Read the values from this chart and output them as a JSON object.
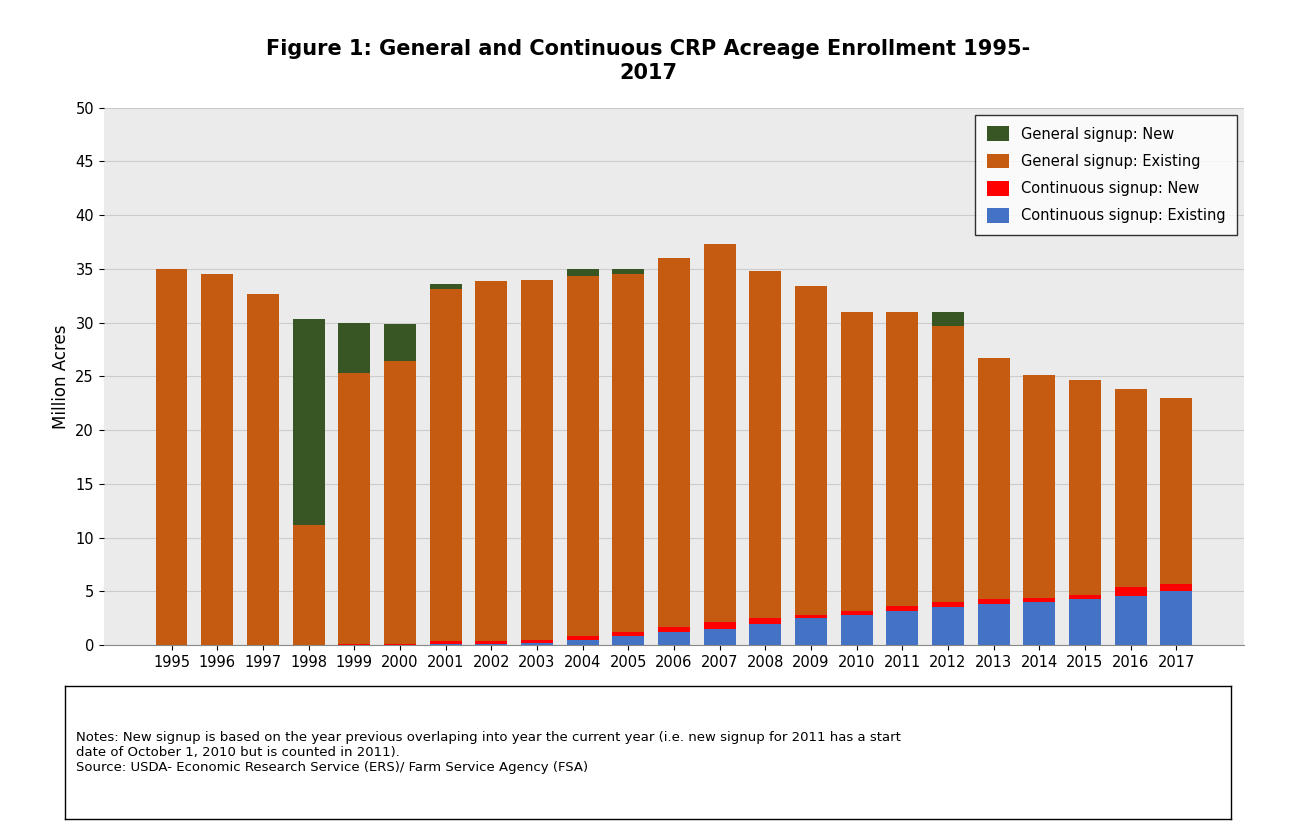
{
  "years": [
    1995,
    1996,
    1997,
    1998,
    1999,
    2000,
    2001,
    2002,
    2003,
    2004,
    2005,
    2006,
    2007,
    2008,
    2009,
    2010,
    2011,
    2012,
    2013,
    2014,
    2015,
    2016,
    2017
  ],
  "continuous_existing": [
    0.0,
    0.0,
    0.0,
    0.0,
    0.0,
    0.0,
    0.1,
    0.1,
    0.2,
    0.5,
    0.8,
    1.2,
    1.5,
    2.0,
    2.5,
    2.8,
    3.2,
    3.5,
    3.8,
    4.0,
    4.3,
    4.6,
    5.0
  ],
  "continuous_new": [
    0.0,
    0.0,
    0.0,
    0.0,
    0.1,
    0.1,
    0.3,
    0.3,
    0.3,
    0.3,
    0.4,
    0.5,
    0.6,
    0.5,
    0.3,
    0.4,
    0.4,
    0.5,
    0.5,
    0.4,
    0.4,
    0.8,
    0.7
  ],
  "general_existing": [
    35.0,
    34.5,
    32.7,
    11.2,
    25.2,
    26.3,
    32.7,
    33.5,
    33.5,
    33.5,
    33.3,
    34.3,
    35.2,
    32.3,
    30.6,
    27.8,
    27.4,
    25.7,
    22.4,
    20.7,
    20.0,
    18.4,
    17.3
  ],
  "general_new": [
    0.0,
    0.0,
    0.0,
    19.1,
    4.7,
    3.5,
    0.5,
    0.0,
    0.0,
    0.7,
    0.5,
    0.0,
    0.0,
    0.0,
    0.0,
    0.0,
    0.0,
    1.3,
    0.0,
    0.0,
    0.0,
    0.0,
    0.0
  ],
  "color_continuous_existing": "#4472C4",
  "color_continuous_new": "#FF0000",
  "color_general_existing": "#C55A11",
  "color_general_new": "#375623",
  "title": "Figure 1: General and Continuous CRP Acreage Enrollment 1995-\n2017",
  "ylabel": "Million Acres",
  "ylim": [
    0,
    50
  ],
  "yticks": [
    0,
    5,
    10,
    15,
    20,
    25,
    30,
    35,
    40,
    45,
    50
  ],
  "legend_labels": [
    "General signup: New",
    "General signup: Existing",
    "Continuous signup: New",
    "Continuous signup: Existing"
  ],
  "note_text": "Notes: New signup is based on the year previous overlaping into year the current year (i.e. new signup for 2011 has a start\ndate of October 1, 2010 but is counted in 2011).\nSource: USDA- Economic Research Service (ERS)/ Farm Service Agency (FSA)"
}
